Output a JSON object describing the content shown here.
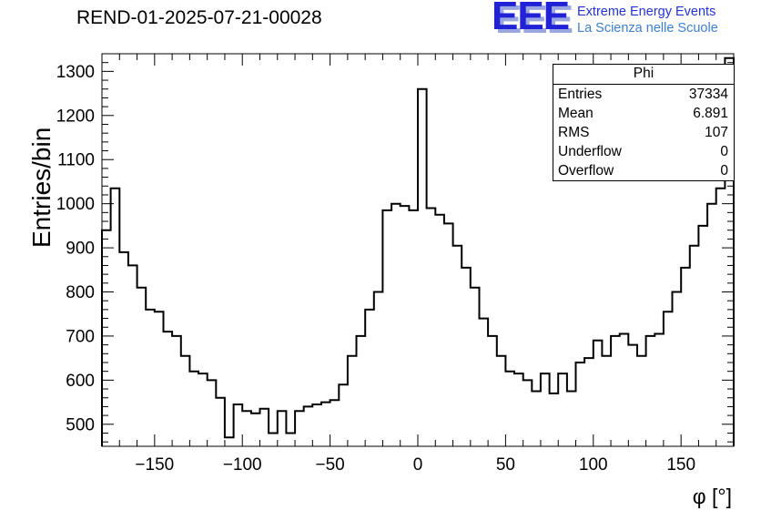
{
  "header": {
    "title": "REND-01-2025-07-21-00028"
  },
  "logo": {
    "acronym": "EEE",
    "line1": "Extreme Energy Events",
    "line2": "La Scienza nelle Scuole",
    "acronym_color": "#2121d8",
    "shadow_color": "#9aa6e0",
    "line1_color": "#2233dd",
    "line2_color": "#3a7fd5"
  },
  "stats_box": {
    "title": "Phi",
    "rows": [
      {
        "label": "Entries",
        "value": "37334"
      },
      {
        "label": "Mean",
        "value": "6.891"
      },
      {
        "label": "RMS",
        "value": "107"
      },
      {
        "label": "Underflow",
        "value": "0"
      },
      {
        "label": "Overflow",
        "value": "0"
      }
    ]
  },
  "chart_data": {
    "type": "bar",
    "subtype": "step-histogram",
    "title": "REND-01-2025-07-21-00028",
    "xlabel": "φ [°]",
    "ylabel": "Entries/bin",
    "xlim": [
      -180,
      180
    ],
    "ylim": [
      450,
      1340
    ],
    "bin_start": -180,
    "bin_width": 5,
    "values": [
      940,
      1035,
      890,
      860,
      810,
      760,
      755,
      710,
      700,
      655,
      620,
      615,
      600,
      560,
      470,
      545,
      530,
      525,
      535,
      480,
      530,
      480,
      530,
      540,
      545,
      550,
      555,
      590,
      655,
      700,
      760,
      800,
      985,
      1000,
      995,
      985,
      1260,
      990,
      975,
      955,
      905,
      855,
      810,
      740,
      700,
      655,
      620,
      615,
      600,
      575,
      615,
      570,
      615,
      575,
      640,
      650,
      690,
      655,
      700,
      705,
      680,
      655,
      700,
      705,
      755,
      800,
      855,
      905,
      950,
      1000,
      1035,
      1330
    ],
    "x_major_ticks": [
      -150,
      -100,
      -50,
      0,
      50,
      100,
      150
    ],
    "x_minor_step": 10,
    "y_major_ticks": [
      500,
      600,
      700,
      800,
      900,
      1000,
      1100,
      1200,
      1300
    ],
    "y_minor_step": 20,
    "line_color": "#000000",
    "grid": false,
    "legend_position": "none",
    "stats": {
      "entries": 37334,
      "mean": 6.891,
      "rms": 107,
      "underflow": 0,
      "overflow": 0
    }
  }
}
